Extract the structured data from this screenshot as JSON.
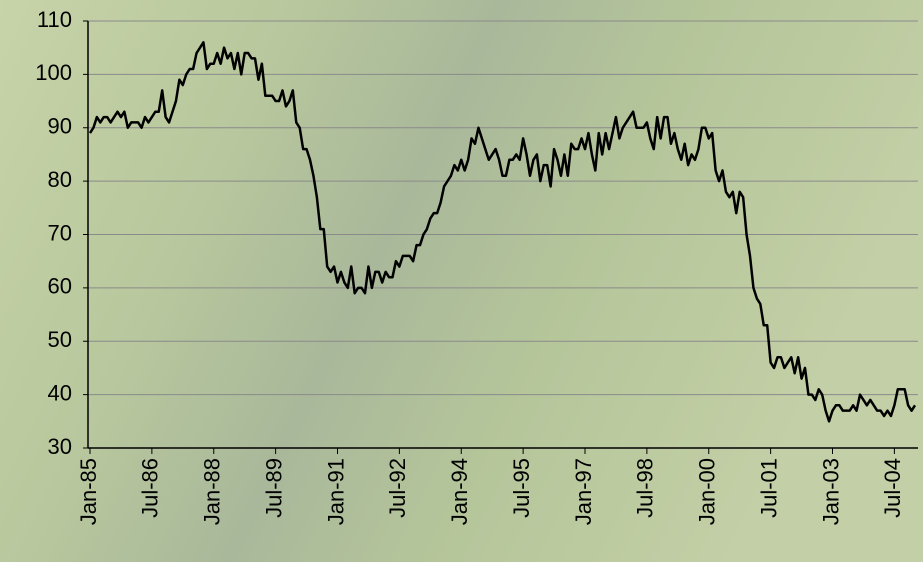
{
  "chart_data": {
    "type": "line",
    "color": "#000000",
    "categories": [
      "Jan-85",
      null,
      null,
      null,
      null,
      null,
      null,
      null,
      null,
      null,
      null,
      null,
      null,
      null,
      null,
      null,
      null,
      null,
      "Jul-86",
      null,
      null,
      null,
      null,
      null,
      null,
      null,
      null,
      null,
      null,
      null,
      null,
      null,
      null,
      null,
      null,
      null,
      "Jan-88",
      null,
      null,
      null,
      null,
      null,
      null,
      null,
      null,
      null,
      null,
      null,
      null,
      null,
      null,
      null,
      null,
      null,
      "Jul-89",
      null,
      null,
      null,
      null,
      null,
      null,
      null,
      null,
      null,
      null,
      null,
      null,
      null,
      null,
      null,
      null,
      null,
      "Jan-91",
      null,
      null,
      null,
      null,
      null,
      null,
      null,
      null,
      null,
      null,
      null,
      null,
      null,
      null,
      null,
      null,
      null,
      "Jul-92",
      null,
      null,
      null,
      null,
      null,
      null,
      null,
      null,
      null,
      null,
      null,
      null,
      null,
      null,
      null,
      null,
      null,
      "Jan-94",
      null,
      null,
      null,
      null,
      null,
      null,
      null,
      null,
      null,
      null,
      null,
      null,
      null,
      null,
      null,
      null,
      null,
      "Jul-95",
      null,
      null,
      null,
      null,
      null,
      null,
      null,
      null,
      null,
      null,
      null,
      null,
      null,
      null,
      null,
      null,
      null,
      "Jan-97",
      null,
      null,
      null,
      null,
      null,
      null,
      null,
      null,
      null,
      null,
      null,
      null,
      null,
      null,
      null,
      null,
      null,
      "Jul-98",
      null,
      null,
      null,
      null,
      null,
      null,
      null,
      null,
      null,
      null,
      null,
      null,
      null,
      null,
      null,
      null,
      null,
      "Jan-00",
      null,
      null,
      null,
      null,
      null,
      null,
      null,
      null,
      null,
      null,
      null,
      null,
      null,
      null,
      null,
      null,
      null,
      "Jul-01",
      null,
      null,
      null,
      null,
      null,
      null,
      null,
      null,
      null,
      null,
      null,
      null,
      null,
      null,
      null,
      null,
      null,
      "Jan-03",
      null,
      null,
      null,
      null,
      null,
      null,
      null,
      null,
      null,
      null,
      null,
      null,
      null,
      null,
      null,
      null,
      null,
      "Jul-04",
      null,
      null,
      null,
      null,
      null,
      null
    ],
    "values": [
      89,
      90,
      92,
      91,
      92,
      92,
      91,
      92,
      93,
      92,
      93,
      90,
      91,
      91,
      91,
      90,
      92,
      91,
      92,
      93,
      93,
      97,
      92,
      91,
      93,
      95,
      99,
      98,
      100,
      101,
      101,
      104,
      105,
      106,
      101,
      102,
      102,
      104,
      102,
      105,
      103,
      104,
      101,
      104,
      100,
      104,
      104,
      103,
      103,
      99,
      102,
      96,
      96,
      96,
      95,
      95,
      97,
      94,
      95,
      97,
      91,
      90,
      86,
      86,
      84,
      81,
      77,
      71,
      71,
      64,
      63,
      64,
      61,
      63,
      61,
      60,
      64,
      59,
      60,
      60,
      59,
      64,
      60,
      63,
      63,
      61,
      63,
      62,
      62,
      65,
      64,
      66,
      66,
      66,
      65,
      68,
      68,
      70,
      71,
      73,
      74,
      74,
      76,
      79,
      80,
      81,
      83,
      82,
      84,
      82,
      84,
      88,
      87,
      90,
      88,
      86,
      84,
      85,
      86,
      84,
      81,
      81,
      84,
      84,
      85,
      84,
      88,
      85,
      81,
      84,
      85,
      80,
      83,
      83,
      79,
      86,
      84,
      81,
      85,
      81,
      87,
      86,
      86,
      88,
      86,
      89,
      85,
      82,
      89,
      85,
      89,
      86,
      89,
      92,
      88,
      90,
      91,
      92,
      93,
      90,
      90,
      90,
      91,
      88,
      86,
      92,
      88,
      92,
      92,
      87,
      89,
      86,
      84,
      87,
      83,
      85,
      84,
      86,
      90,
      90,
      88,
      89,
      82,
      80,
      82,
      78,
      77,
      78,
      74,
      78,
      77,
      70,
      66,
      60,
      58,
      57,
      53,
      53,
      46,
      45,
      47,
      47,
      45,
      46,
      47,
      44,
      47,
      43,
      45,
      40,
      40,
      39,
      41,
      40,
      37,
      35,
      37,
      38,
      38,
      37,
      37,
      37,
      38,
      37,
      40,
      39,
      38,
      39,
      38,
      37,
      37,
      36,
      37,
      36,
      38,
      41,
      41,
      41,
      38,
      37,
      38
    ],
    "ylim": [
      30,
      110
    ],
    "yticks": [
      30,
      40,
      50,
      60,
      70,
      80,
      90,
      100,
      110
    ],
    "grid": true
  }
}
